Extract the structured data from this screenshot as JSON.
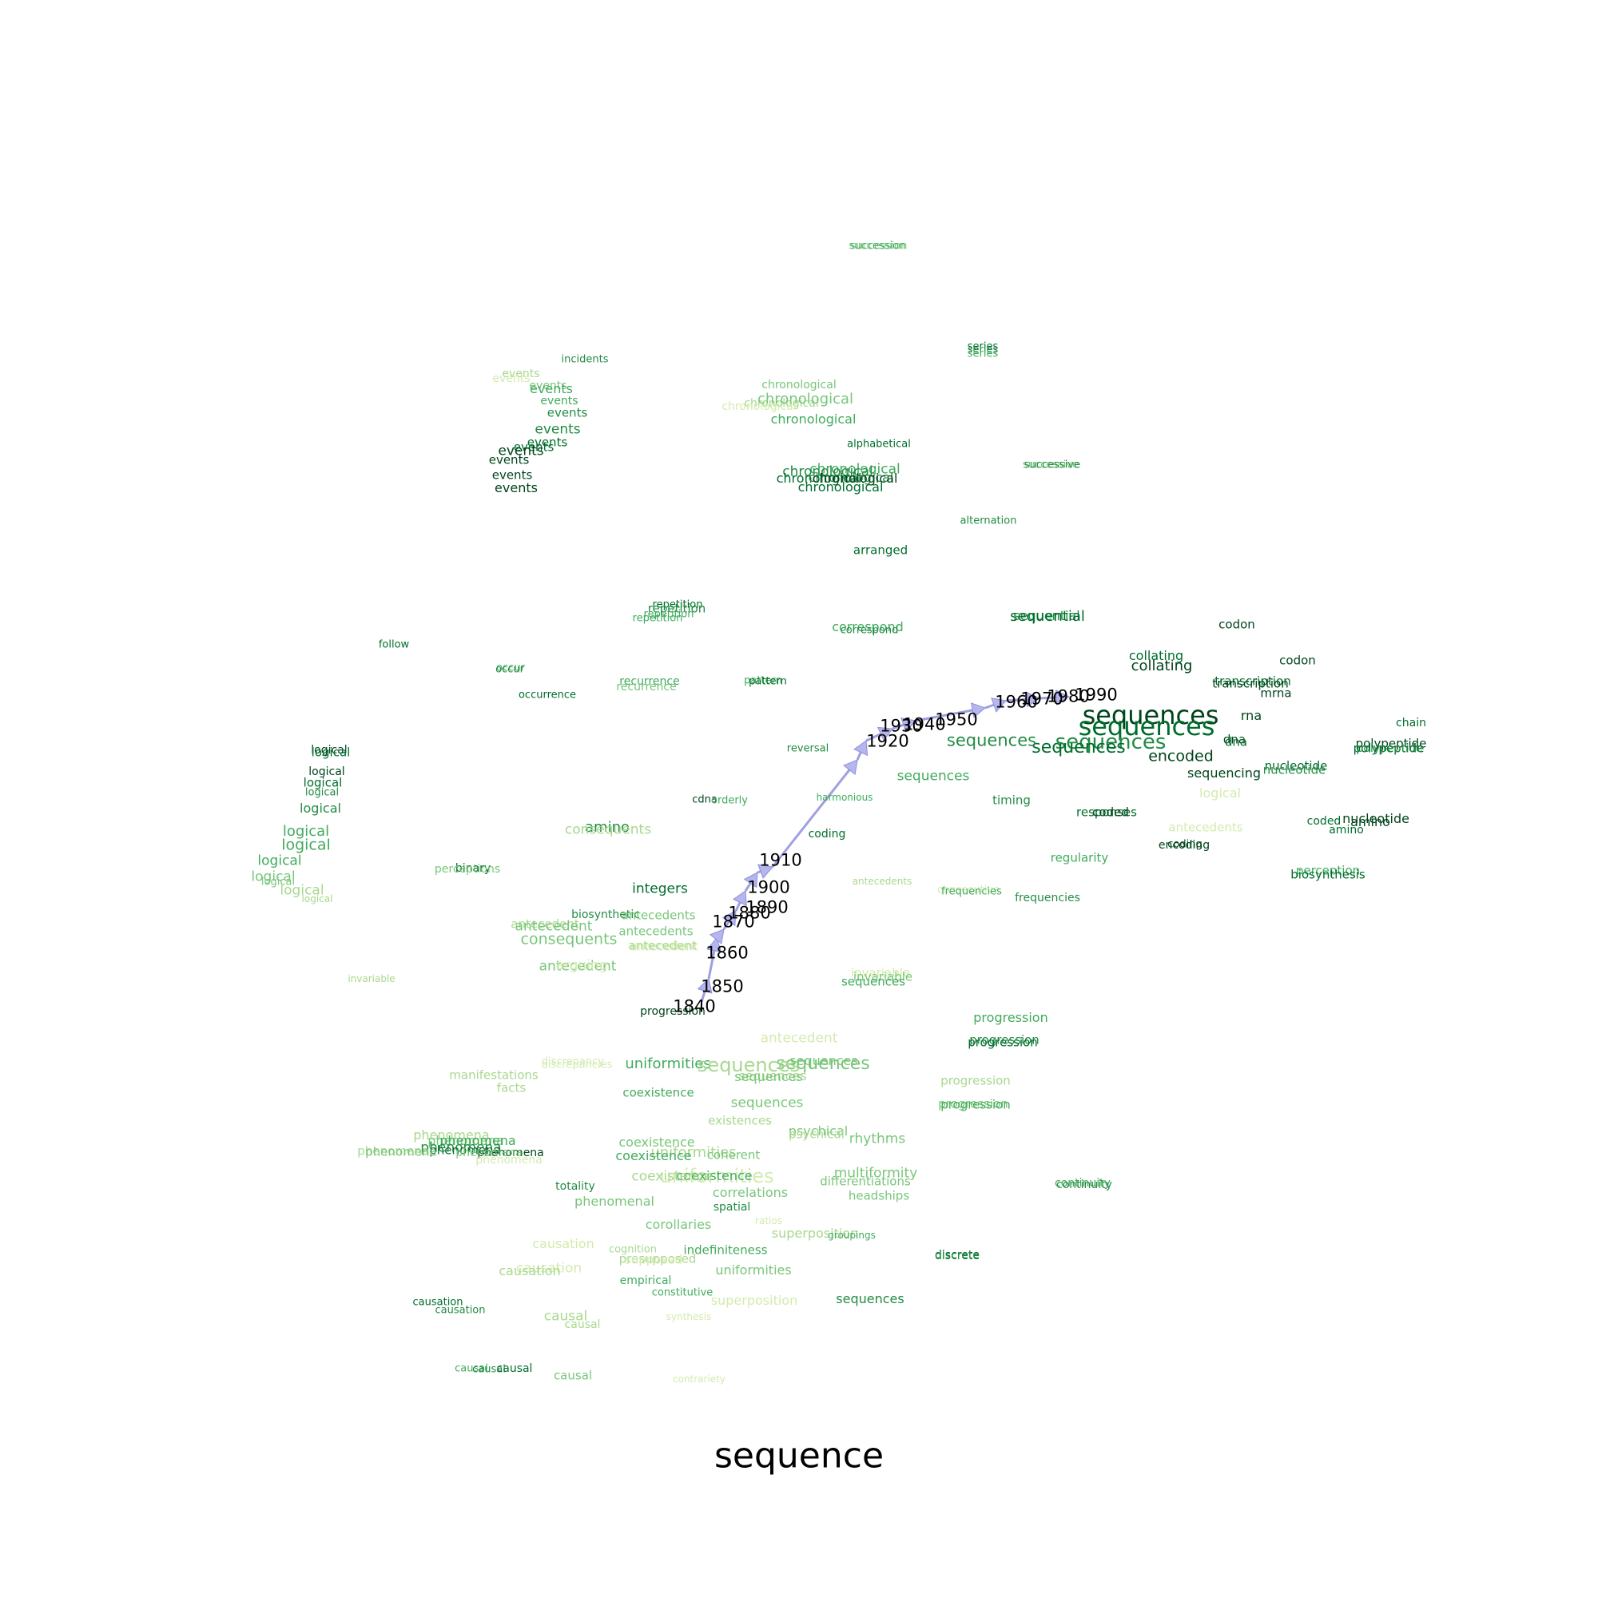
{
  "title": "sequence",
  "colors": {
    "arrow_fill": "#b6b6ee",
    "arrow_stroke": "#8e8edd",
    "greens": [
      "#d3ebae",
      "#a8d88e",
      "#78c679",
      "#41ab5d",
      "#238b45",
      "#006d2c",
      "#00441b"
    ]
  },
  "trajectory": [
    {
      "year": "1840"
    },
    {
      "year": "1850"
    },
    {
      "year": "1860"
    },
    {
      "year": "1870"
    },
    {
      "year": "1880"
    },
    {
      "year": "1890"
    },
    {
      "year": "1900"
    },
    {
      "year": "1910"
    },
    {
      "year": "1920"
    },
    {
      "year": "1930"
    },
    {
      "year": "1940"
    },
    {
      "year": "1950"
    },
    {
      "year": "1960"
    },
    {
      "year": "1970"
    },
    {
      "year": "1980"
    },
    {
      "year": "1990"
    }
  ],
  "words": [
    {
      "text": "succession",
      "shade": 2
    },
    {
      "text": "succession",
      "shade": 3
    },
    {
      "text": "series",
      "shade": 5
    },
    {
      "text": "series",
      "shade": 4
    },
    {
      "text": "series",
      "shade": 3
    },
    {
      "text": "incidents",
      "shade": 4
    },
    {
      "text": "events",
      "shade": 1
    },
    {
      "text": "events",
      "shade": 0
    },
    {
      "text": "events",
      "shade": 2
    },
    {
      "text": "events",
      "shade": 3
    },
    {
      "text": "events",
      "shade": 3
    },
    {
      "text": "events",
      "shade": 4
    },
    {
      "text": "events",
      "shade": 4
    },
    {
      "text": "events",
      "shade": 5
    },
    {
      "text": "events",
      "shade": 5
    },
    {
      "text": "events",
      "shade": 6
    },
    {
      "text": "events",
      "shade": 6
    },
    {
      "text": "events",
      "shade": 6
    },
    {
      "text": "events",
      "shade": 6
    },
    {
      "text": "chronological",
      "shade": 2
    },
    {
      "text": "chronological",
      "shade": 1
    },
    {
      "text": "chronological",
      "shade": 2
    },
    {
      "text": "chronological",
      "shade": 0
    },
    {
      "text": "chronological",
      "shade": 3
    },
    {
      "text": "chronological",
      "shade": 3
    },
    {
      "text": "chronological",
      "shade": 4
    },
    {
      "text": "chronological",
      "shade": 5
    },
    {
      "text": "chronological",
      "shade": 4
    },
    {
      "text": "chronological",
      "shade": 6
    },
    {
      "text": "chronological",
      "shade": 5
    },
    {
      "text": "alphabetical",
      "shade": 5
    },
    {
      "text": "successive",
      "shade": 2
    },
    {
      "text": "successive",
      "shade": 4
    },
    {
      "text": "alternation",
      "shade": 4
    },
    {
      "text": "arranged",
      "shade": 5
    },
    {
      "text": "repetition",
      "shade": 5
    },
    {
      "text": "repetition",
      "shade": 4
    },
    {
      "text": "repetition",
      "shade": 3
    },
    {
      "text": "repetition",
      "shade": 3
    },
    {
      "text": "correspond",
      "shade": 3
    },
    {
      "text": "correspond",
      "shade": 4
    },
    {
      "text": "sequential",
      "shade": 4
    },
    {
      "text": "sequential",
      "shade": 5
    },
    {
      "text": "codon",
      "shade": 6
    },
    {
      "text": "codon",
      "shade": 6
    },
    {
      "text": "follow",
      "shade": 5
    },
    {
      "text": "occur",
      "shade": 3
    },
    {
      "text": "occur",
      "shade": 4
    },
    {
      "text": "occurrence",
      "shade": 5
    },
    {
      "text": "recurrence",
      "shade": 3
    },
    {
      "text": "recurrence",
      "shade": 2
    },
    {
      "text": "pattern",
      "shade": 3
    },
    {
      "text": "pattern",
      "shade": 5
    },
    {
      "text": "collating",
      "shade": 5
    },
    {
      "text": "collating",
      "shade": 6
    },
    {
      "text": "transcription",
      "shade": 5
    },
    {
      "text": "transcription",
      "shade": 6
    },
    {
      "text": "mrna",
      "shade": 6
    },
    {
      "text": "sequences",
      "shade": 6
    },
    {
      "text": "sequences",
      "shade": 5
    },
    {
      "text": "sequences",
      "shade": 4
    },
    {
      "text": "sequences",
      "shade": 5
    },
    {
      "text": "sequences",
      "shade": 4
    },
    {
      "text": "sequences",
      "shade": 3
    },
    {
      "text": "rna",
      "shade": 6
    },
    {
      "text": "dna",
      "shade": 6
    },
    {
      "text": "dna",
      "shade": 5
    },
    {
      "text": "chain",
      "shade": 5
    },
    {
      "text": "polypeptide",
      "shade": 6
    },
    {
      "text": "polypeptide",
      "shade": 5
    },
    {
      "text": "polypeptide",
      "shade": 4
    },
    {
      "text": "encoded",
      "shade": 6
    },
    {
      "text": "reversal",
      "shade": 4
    },
    {
      "text": "sequencing",
      "shade": 6
    },
    {
      "text": "nucleotide",
      "shade": 5
    },
    {
      "text": "nucleotide",
      "shade": 4
    },
    {
      "text": "logical",
      "shade": 6
    },
    {
      "text": "logical",
      "shade": 5
    },
    {
      "text": "logical",
      "shade": 6
    },
    {
      "text": "logical",
      "shade": 5
    },
    {
      "text": "logical",
      "shade": 4
    },
    {
      "text": "logical",
      "shade": 4
    },
    {
      "text": "logical",
      "shade": 3
    },
    {
      "text": "logical",
      "shade": 3
    },
    {
      "text": "logical",
      "shade": 3
    },
    {
      "text": "logical",
      "shade": 2
    },
    {
      "text": "logical",
      "shade": 2
    },
    {
      "text": "logical",
      "shade": 1
    },
    {
      "text": "logical",
      "shade": 1
    },
    {
      "text": "logical",
      "shade": 0
    },
    {
      "text": "cdna",
      "shade": 6
    },
    {
      "text": "orderly",
      "shade": 3
    },
    {
      "text": "harmonious",
      "shade": 3
    },
    {
      "text": "timing",
      "shade": 4
    },
    {
      "text": "responses",
      "shade": 5
    },
    {
      "text": "coded",
      "shade": 6
    },
    {
      "text": "coded",
      "shade": 5
    },
    {
      "text": "nucleotide",
      "shade": 6
    },
    {
      "text": "amino",
      "shade": 6
    },
    {
      "text": "amino",
      "shade": 5
    },
    {
      "text": "amino",
      "shade": 4
    },
    {
      "text": "consequents",
      "shade": 1
    },
    {
      "text": "antecedents",
      "shade": 0
    },
    {
      "text": "encoding",
      "shade": 6
    },
    {
      "text": "coding",
      "shade": 6
    },
    {
      "text": "coding",
      "shade": 5
    },
    {
      "text": "regularity",
      "shade": 3
    },
    {
      "text": "binary",
      "shade": 5
    },
    {
      "text": "perceptions",
      "shade": 2
    },
    {
      "text": "perception",
      "shade": 3
    },
    {
      "text": "biosynthesis",
      "shade": 5
    },
    {
      "text": "biosynthetic",
      "shade": 4
    },
    {
      "text": "antecedents",
      "shade": 1
    },
    {
      "text": "consecutive",
      "shade": 0
    },
    {
      "text": "frequencies",
      "shade": 3
    },
    {
      "text": "frequencies",
      "shade": 4
    },
    {
      "text": "integers",
      "shade": 5
    },
    {
      "text": "antecedents",
      "shade": 2
    },
    {
      "text": "antecedents",
      "shade": 2
    },
    {
      "text": "antecedent",
      "shade": 0
    },
    {
      "text": "antecedent",
      "shade": 1
    },
    {
      "text": "antecedent",
      "shade": 2
    },
    {
      "text": "consequents",
      "shade": 2
    },
    {
      "text": "antecedent",
      "shade": 1
    },
    {
      "text": "antecedent",
      "shade": 2
    },
    {
      "text": "arguing",
      "shade": 0
    },
    {
      "text": "invariable",
      "shade": 1
    },
    {
      "text": "invariable",
      "shade": 0
    },
    {
      "text": "invariable",
      "shade": 2
    },
    {
      "text": "sequences",
      "shade": 3
    },
    {
      "text": "antecedent",
      "shade": 0
    },
    {
      "text": "progression",
      "shade": 6
    },
    {
      "text": "progression",
      "shade": 3
    },
    {
      "text": "progression",
      "shade": 4
    },
    {
      "text": "progression",
      "shade": 5
    },
    {
      "text": "sequences",
      "shade": 2
    },
    {
      "text": "uniformities",
      "shade": 3
    },
    {
      "text": "sequences",
      "shade": 1
    },
    {
      "text": "sequences",
      "shade": 2
    },
    {
      "text": "sequences",
      "shade": 1
    },
    {
      "text": "sequences",
      "shade": 2
    },
    {
      "text": "discrepancy",
      "shade": 0
    },
    {
      "text": "discrepancies",
      "shade": 0
    },
    {
      "text": "manifestations",
      "shade": 1
    },
    {
      "text": "facts",
      "shade": 1
    },
    {
      "text": "coexistence",
      "shade": 3
    },
    {
      "text": "progression",
      "shade": 1
    },
    {
      "text": "sequences",
      "shade": 2
    },
    {
      "text": "existences",
      "shade": 1
    },
    {
      "text": "progression",
      "shade": 2
    },
    {
      "text": "progression",
      "shade": 3
    },
    {
      "text": "phenomena",
      "shade": 1
    },
    {
      "text": "phenomena",
      "shade": 2
    },
    {
      "text": "phenomena",
      "shade": 3
    },
    {
      "text": "phenomena",
      "shade": 4
    },
    {
      "text": "phenomena",
      "shade": 5
    },
    {
      "text": "phenomena",
      "shade": 1
    },
    {
      "text": "phenomena",
      "shade": 2
    },
    {
      "text": "phenomena",
      "shade": 6
    },
    {
      "text": "phenomena",
      "shade": 2
    },
    {
      "text": "phenomena",
      "shade": 0
    },
    {
      "text": "psychical",
      "shade": 2
    },
    {
      "text": "psychical",
      "shade": 1
    },
    {
      "text": "rhythms",
      "shade": 2
    },
    {
      "text": "coexistence",
      "shade": 2
    },
    {
      "text": "uniformities",
      "shade": 1
    },
    {
      "text": "coexistence",
      "shade": 3
    },
    {
      "text": "coherent",
      "shade": 2
    },
    {
      "text": "uniformities",
      "shade": 0
    },
    {
      "text": "coexistence",
      "shade": 3
    },
    {
      "text": "coexistence",
      "shade": 1
    },
    {
      "text": "multiformity",
      "shade": 2
    },
    {
      "text": "differentiations",
      "shade": 2
    },
    {
      "text": "continuity",
      "shade": 3
    },
    {
      "text": "continuity",
      "shade": 4
    },
    {
      "text": "totality",
      "shade": 4
    },
    {
      "text": "phenomenal",
      "shade": 2
    },
    {
      "text": "correlations",
      "shade": 2
    },
    {
      "text": "spatial",
      "shade": 4
    },
    {
      "text": "headships",
      "shade": 2
    },
    {
      "text": "ratios",
      "shade": 0
    },
    {
      "text": "superposition",
      "shade": 1
    },
    {
      "text": "groupings",
      "shade": 3
    },
    {
      "text": "corollaries",
      "shade": 2
    },
    {
      "text": "causation",
      "shade": 0
    },
    {
      "text": "cognition",
      "shade": 1
    },
    {
      "text": "presupposed",
      "shade": 1
    },
    {
      "text": "supposed",
      "shade": 0
    },
    {
      "text": "indefiniteness",
      "shade": 3
    },
    {
      "text": "discrete",
      "shade": 5
    },
    {
      "text": "discrete",
      "shade": 4
    },
    {
      "text": "causation",
      "shade": 0
    },
    {
      "text": "causation",
      "shade": 1
    },
    {
      "text": "uniformities",
      "shade": 2
    },
    {
      "text": "empirical",
      "shade": 3
    },
    {
      "text": "constitutive",
      "shade": 3
    },
    {
      "text": "superposition",
      "shade": 0
    },
    {
      "text": "sequences",
      "shade": 4
    },
    {
      "text": "causation",
      "shade": 5
    },
    {
      "text": "causation",
      "shade": 4
    },
    {
      "text": "causal",
      "shade": 1
    },
    {
      "text": "causal",
      "shade": 1
    },
    {
      "text": "synthesis",
      "shade": 0
    },
    {
      "text": "causal",
      "shade": 3
    },
    {
      "text": "causal",
      "shade": 4
    },
    {
      "text": "causal",
      "shade": 5
    },
    {
      "text": "causal",
      "shade": 2
    },
    {
      "text": "contrariety",
      "shade": 0
    }
  ]
}
